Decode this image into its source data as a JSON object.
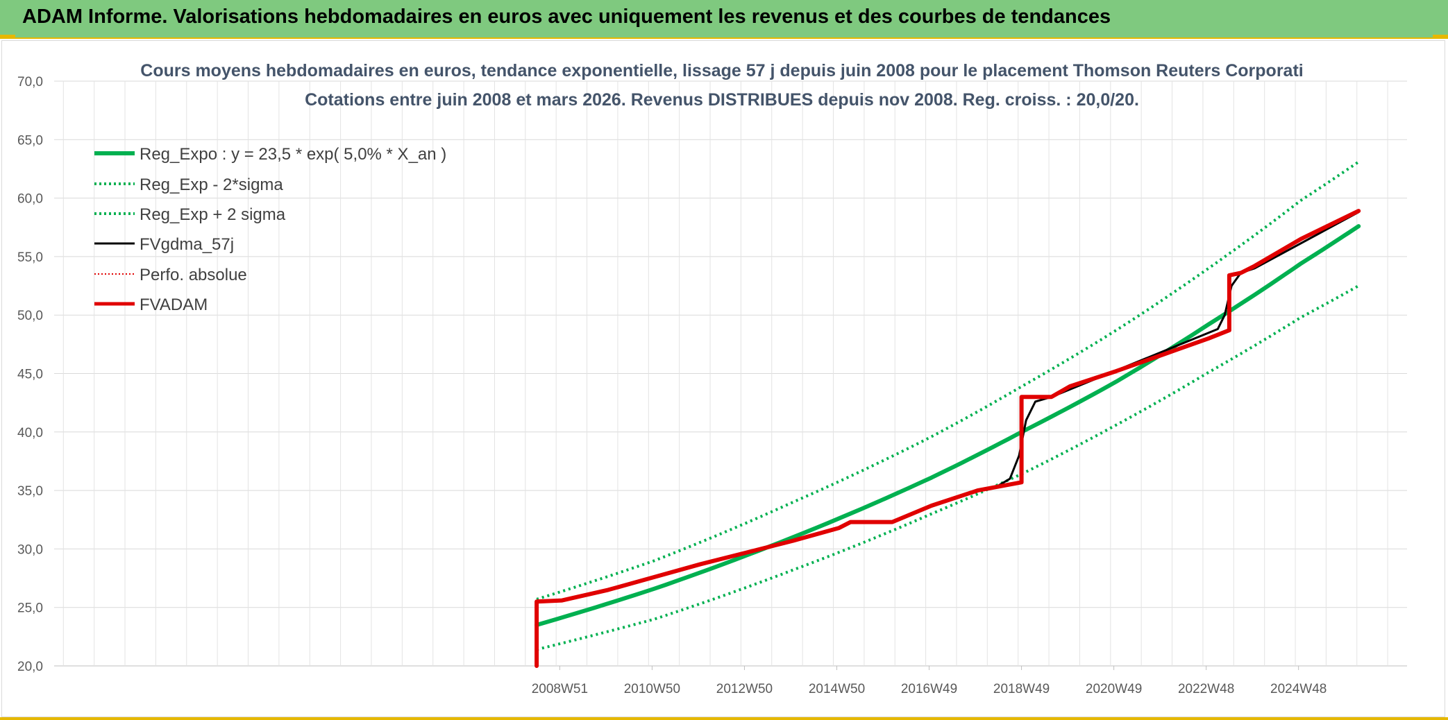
{
  "header": {
    "title": "ADAM Informe. Valorisations hebdomadaires en euros avec uniquement les revenus et des courbes de tendances"
  },
  "colors": {
    "banner": "#7fc97f",
    "accent": "#e6b800",
    "trend_green": "#00b050",
    "red": "#e00000",
    "black": "#000000"
  },
  "chart_data": {
    "type": "line",
    "title_lines": [
      "Cours moyens hebdomadaires en euros, tendance exponentielle, lissage 57 j depuis juin 2008 pour le placement Thomson Reuters Corporati",
      "Cotations entre juin 2008 et mars 2026. Revenus DISTRIBUES depuis nov 2008. Reg. croiss. : 20,0/20."
    ],
    "ylim": [
      20,
      70
    ],
    "y_ticks": [
      "20,0",
      "25,0",
      "30,0",
      "35,0",
      "40,0",
      "45,0",
      "50,0",
      "55,0",
      "60,0",
      "65,0",
      "70,0"
    ],
    "x_range": [
      1998.0,
      2027.3
    ],
    "x_ticks": [
      {
        "x": 2008.95,
        "label": "2008W51"
      },
      {
        "x": 2010.95,
        "label": "2010W50"
      },
      {
        "x": 2012.95,
        "label": "2012W50"
      },
      {
        "x": 2014.95,
        "label": "2014W50"
      },
      {
        "x": 2016.95,
        "label": "2016W49"
      },
      {
        "x": 2018.95,
        "label": "2018W49"
      },
      {
        "x": 2020.95,
        "label": "2020W49"
      },
      {
        "x": 2022.95,
        "label": "2022W48"
      },
      {
        "x": 2024.95,
        "label": "2024W48"
      }
    ],
    "grid": true,
    "legend_position": "top-left",
    "series": [
      {
        "name": "Reg_Expo : y = 23,5 * exp( 5,0% *  X_an )",
        "style": "solid-thick",
        "color": "#00b050",
        "points": [
          [
            2008.45,
            23.5
          ],
          [
            2011.0,
            26.6
          ],
          [
            2014.0,
            31.0
          ],
          [
            2017.0,
            36.1
          ],
          [
            2019.0,
            40.1
          ],
          [
            2021.0,
            44.3
          ],
          [
            2023.0,
            49.2
          ],
          [
            2025.0,
            54.4
          ],
          [
            2026.25,
            57.6
          ]
        ]
      },
      {
        "name": "Reg_Exp - 2*sigma",
        "style": "dotted",
        "color": "#00b050",
        "points": [
          [
            2008.45,
            21.4
          ],
          [
            2011.0,
            24.0
          ],
          [
            2014.0,
            28.2
          ],
          [
            2017.0,
            33.0
          ],
          [
            2019.0,
            36.5
          ],
          [
            2021.0,
            40.6
          ],
          [
            2023.0,
            45.1
          ],
          [
            2025.0,
            49.8
          ],
          [
            2026.25,
            52.5
          ]
        ]
      },
      {
        "name": "Reg_Exp + 2 sigma",
        "style": "dotted",
        "color": "#00b050",
        "points": [
          [
            2008.45,
            25.7
          ],
          [
            2011.0,
            29.0
          ],
          [
            2014.0,
            34.0
          ],
          [
            2017.0,
            39.6
          ],
          [
            2019.0,
            44.0
          ],
          [
            2021.0,
            48.7
          ],
          [
            2023.0,
            54.0
          ],
          [
            2025.0,
            59.8
          ],
          [
            2026.25,
            63.1
          ]
        ]
      },
      {
        "name": "FVgdma_57j",
        "style": "solid",
        "color": "#000000",
        "points": [
          [
            2018.4,
            35.3
          ],
          [
            2018.7,
            36.0
          ],
          [
            2018.9,
            38.0
          ],
          [
            2019.05,
            41.0
          ],
          [
            2019.25,
            42.6
          ],
          [
            2019.6,
            43.0
          ],
          [
            2023.2,
            48.8
          ],
          [
            2023.35,
            50.0
          ],
          [
            2023.5,
            52.5
          ],
          [
            2023.7,
            53.6
          ],
          [
            2024.0,
            54.0
          ],
          [
            2026.25,
            58.8
          ]
        ]
      },
      {
        "name": "Perfo. absolue",
        "style": "dotted-thin",
        "color": "#e00000",
        "points": []
      },
      {
        "name": "FVADAM",
        "style": "solid-thick",
        "color": "#e00000",
        "points": [
          [
            2008.45,
            20.0
          ],
          [
            2008.45,
            25.5
          ],
          [
            2009.0,
            25.6
          ],
          [
            2010.0,
            26.5
          ],
          [
            2011.0,
            27.6
          ],
          [
            2012.0,
            28.7
          ],
          [
            2013.0,
            29.7
          ],
          [
            2014.0,
            30.7
          ],
          [
            2015.0,
            31.8
          ],
          [
            2015.25,
            32.3
          ],
          [
            2016.15,
            32.3
          ],
          [
            2017.0,
            33.7
          ],
          [
            2018.0,
            35.0
          ],
          [
            2018.95,
            35.7
          ],
          [
            2018.95,
            43.0
          ],
          [
            2019.6,
            43.0
          ],
          [
            2020.0,
            43.9
          ],
          [
            2021.0,
            45.2
          ],
          [
            2022.0,
            46.6
          ],
          [
            2023.0,
            48.0
          ],
          [
            2023.45,
            48.7
          ],
          [
            2023.45,
            53.4
          ],
          [
            2023.7,
            53.6
          ],
          [
            2024.0,
            54.2
          ],
          [
            2025.0,
            56.5
          ],
          [
            2026.25,
            58.9
          ]
        ]
      }
    ]
  }
}
